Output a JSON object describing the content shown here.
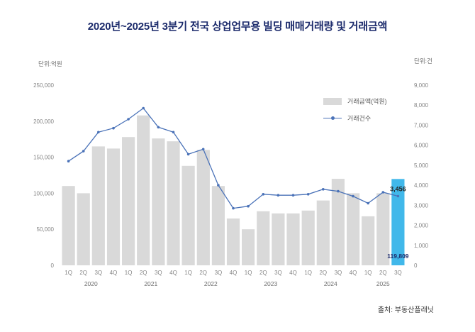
{
  "title": "2020년~2025년 3분기 전국 상업업무용 빌딩 매매거래량 및 거래금액",
  "left_axis_unit": "단위:억원",
  "right_axis_unit": "단위:건",
  "source": "출처: 부동산플래닛",
  "legend": {
    "bar_label": "거래금액(억원)",
    "line_label": "거래건수"
  },
  "colors": {
    "bar": "#d9d9d9",
    "highlight_bar": "#41b8ea",
    "line": "#4a72b8",
    "title": "#1b2a6b"
  },
  "chart_data": {
    "type": "bar+line",
    "title": "2020년~2025년 3분기 전국 상업업무용 빌딩 매매거래량 및 거래금액",
    "categories": [
      "1Q",
      "2Q",
      "3Q",
      "4Q",
      "1Q",
      "2Q",
      "3Q",
      "4Q",
      "1Q",
      "2Q",
      "3Q",
      "4Q",
      "1Q",
      "2Q",
      "3Q",
      "4Q",
      "1Q",
      "2Q",
      "3Q",
      "4Q",
      "1Q",
      "2Q",
      "3Q"
    ],
    "year_groups": [
      {
        "year": "2020",
        "count": 4
      },
      {
        "year": "2021",
        "count": 4
      },
      {
        "year": "2022",
        "count": 4
      },
      {
        "year": "2023",
        "count": 4
      },
      {
        "year": "2024",
        "count": 4
      },
      {
        "year": "2025",
        "count": 3
      }
    ],
    "series": [
      {
        "name": "거래금액(억원)",
        "axis": "left",
        "values": [
          110000,
          100000,
          165000,
          162000,
          178000,
          208000,
          176000,
          172000,
          138000,
          160000,
          110000,
          65000,
          50000,
          75000,
          72000,
          72000,
          76000,
          90000,
          120000,
          100000,
          68000,
          100000,
          119809
        ]
      },
      {
        "name": "거래건수",
        "axis": "right",
        "values": [
          5200,
          5700,
          6650,
          6850,
          7300,
          7850,
          6900,
          6650,
          5550,
          5800,
          4000,
          2850,
          2950,
          3550,
          3500,
          3500,
          3550,
          3800,
          3700,
          3450,
          3100,
          3650,
          3456
        ]
      }
    ],
    "left_axis": {
      "label": "단위:억원",
      "max": 250000,
      "ticks": [
        0,
        50000,
        100000,
        150000,
        200000,
        250000
      ]
    },
    "right_axis": {
      "label": "단위:건",
      "max": 9000,
      "ticks": [
        0,
        1000,
        2000,
        3000,
        4000,
        5000,
        6000,
        7000,
        8000,
        9000
      ]
    },
    "highlight_index": 22,
    "annotations": {
      "line_label": "3,456",
      "bar_label": "119,809"
    },
    "grid": false,
    "legend_position": "top-right"
  }
}
